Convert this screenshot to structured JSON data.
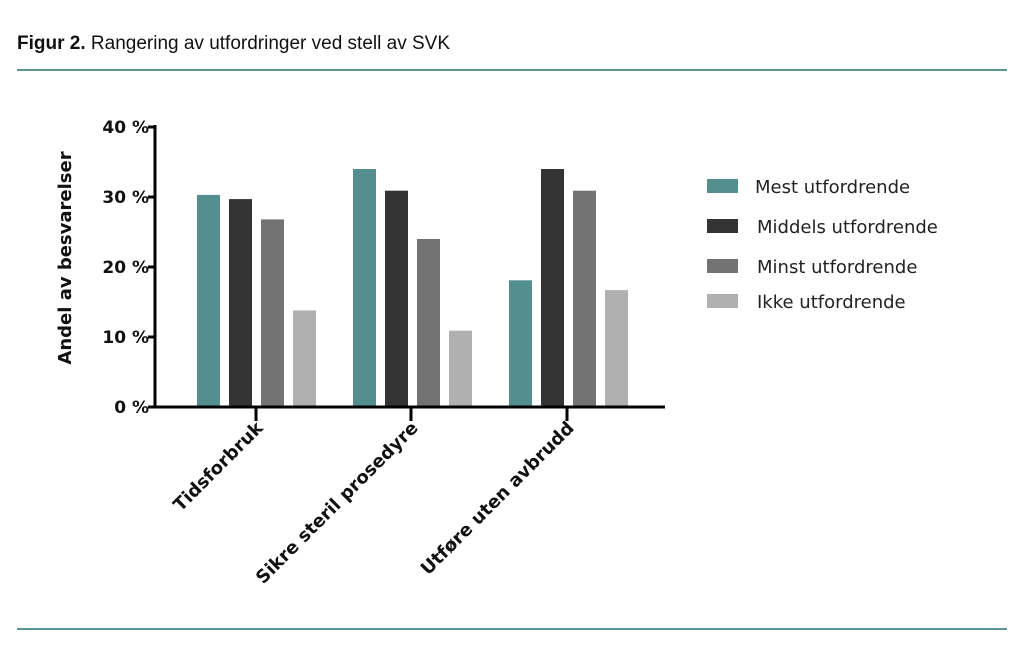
{
  "figure": {
    "label": "Figur 2.",
    "title": "Rangering av utfordringer ved stell av SVK"
  },
  "chart_data": {
    "type": "bar",
    "title": "",
    "xlabel": "",
    "ylabel": "Andel av besvarelser",
    "ylim": [
      0,
      40
    ],
    "yticks": [
      "0 %",
      "10 %",
      "20 %",
      "30 %",
      "40 %"
    ],
    "categories": [
      "Tidsforbruk",
      "Sikre steril prosedyre",
      "Utføre uten avbrudd"
    ],
    "legend_position": "right",
    "grid": false,
    "series": [
      {
        "name": "Mest utfordrende",
        "color": "#548f8f",
        "values": [
          30.3,
          34.0,
          18.1
        ]
      },
      {
        "name": "Middels utfordrende",
        "color": "#333333",
        "values": [
          29.7,
          30.9,
          34.0
        ]
      },
      {
        "name": "Minst utfordrende",
        "color": "#737373",
        "values": [
          26.8,
          24.0,
          30.9
        ]
      },
      {
        "name": "Ikke utfordrende",
        "color": "#b0b0b0",
        "values": [
          13.8,
          10.9,
          16.7
        ]
      }
    ]
  }
}
